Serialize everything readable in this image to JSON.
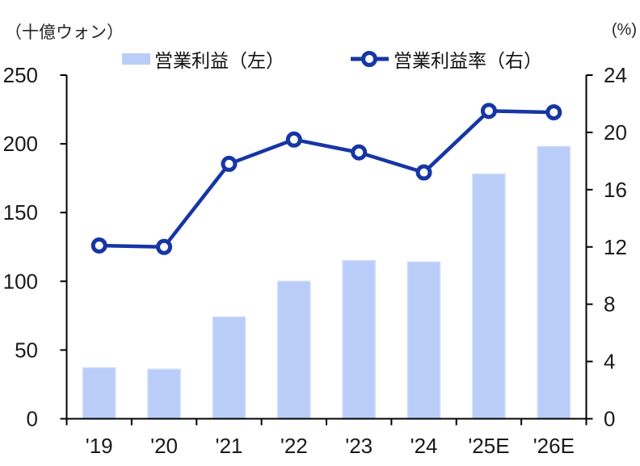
{
  "chart_data": {
    "type": "bar+line combo",
    "categories": [
      "'19",
      "'20",
      "'21",
      "'22",
      "'23",
      "'24",
      "'25E",
      "'26E"
    ],
    "series": [
      {
        "name": "営業利益（左）",
        "type": "bar",
        "axis": "left",
        "values": [
          37,
          36,
          74,
          100,
          115,
          114,
          178,
          198
        ]
      },
      {
        "name": "営業利益率（右）",
        "type": "line",
        "axis": "right",
        "values": [
          12.1,
          12.0,
          17.8,
          19.5,
          18.6,
          17.2,
          21.5,
          21.4
        ]
      }
    ],
    "left_axis": {
      "title": "（十億ウォン）",
      "ticks": [
        0,
        50,
        100,
        150,
        200,
        250
      ],
      "range": [
        0,
        250
      ]
    },
    "right_axis": {
      "title": "(%)",
      "ticks": [
        0,
        4,
        8,
        12,
        16,
        20,
        24
      ],
      "range": [
        0,
        24
      ]
    },
    "legend_position": "top",
    "grid": "off",
    "colors": {
      "bar_fill": "#B9CDF8",
      "bar_edge": "#CDDAFB",
      "line": "#1636A4",
      "marker_fill": "#FFFFFF",
      "axis_line": "#000000",
      "tick_text": "#1A1A1A"
    }
  }
}
